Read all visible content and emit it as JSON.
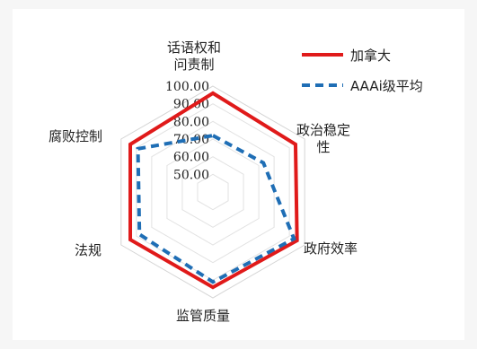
{
  "chart_data": {
    "type": "radar",
    "axes": [
      "话语权和问责制",
      "政治稳定性",
      "政府效率",
      "监管质量",
      "法规",
      "腐败控制"
    ],
    "axis_label_lines": [
      [
        "话语权和",
        "问责制"
      ],
      [
        "政治稳定",
        "性"
      ],
      [
        "政府效率"
      ],
      [
        "监管质量"
      ],
      [
        "法规"
      ],
      [
        "腐败控制"
      ]
    ],
    "ticks": [
      "50.00",
      "60.00",
      "70.00",
      "80.00",
      "90.00",
      "100.00"
    ],
    "range": [
      40,
      100
    ],
    "gridlines": true,
    "legend_position": "top-right",
    "series": [
      {
        "name": "加拿大",
        "color": "#e01a1a",
        "dash": "solid",
        "values": [
          96,
          94,
          95,
          94,
          94,
          94
        ]
      },
      {
        "name": "AAAi级平均",
        "color": "#1f6eb5",
        "dash": "dashed",
        "values": [
          72,
          73,
          93,
          91,
          88,
          89
        ]
      }
    ]
  }
}
